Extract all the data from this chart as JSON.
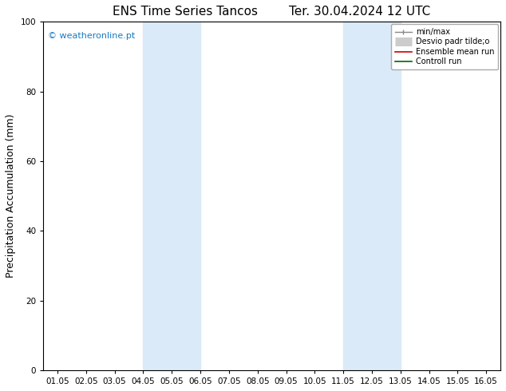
{
  "title_left": "ENS Time Series Tancos",
  "title_right": "Ter. 30.04.2024 12 UTC",
  "ylabel": "Precipitation Accumulation (mm)",
  "xlabel_ticks": [
    "01.05",
    "02.05",
    "03.05",
    "04.05",
    "05.05",
    "06.05",
    "07.05",
    "08.05",
    "09.05",
    "10.05",
    "11.05",
    "12.05",
    "13.05",
    "14.05",
    "15.05",
    "16.05"
  ],
  "ylim": [
    0,
    100
  ],
  "yticks": [
    0,
    20,
    40,
    60,
    80,
    100
  ],
  "shade_bands": [
    {
      "xstart": 3,
      "xend": 5
    },
    {
      "xstart": 10,
      "xend": 12
    }
  ],
  "shade_color": "#daeaf8",
  "watermark": "© weatheronline.pt",
  "watermark_color": "#1a7abf",
  "bg_color": "#ffffff",
  "title_fontsize": 11,
  "tick_fontsize": 7.5,
  "ylabel_fontsize": 9
}
